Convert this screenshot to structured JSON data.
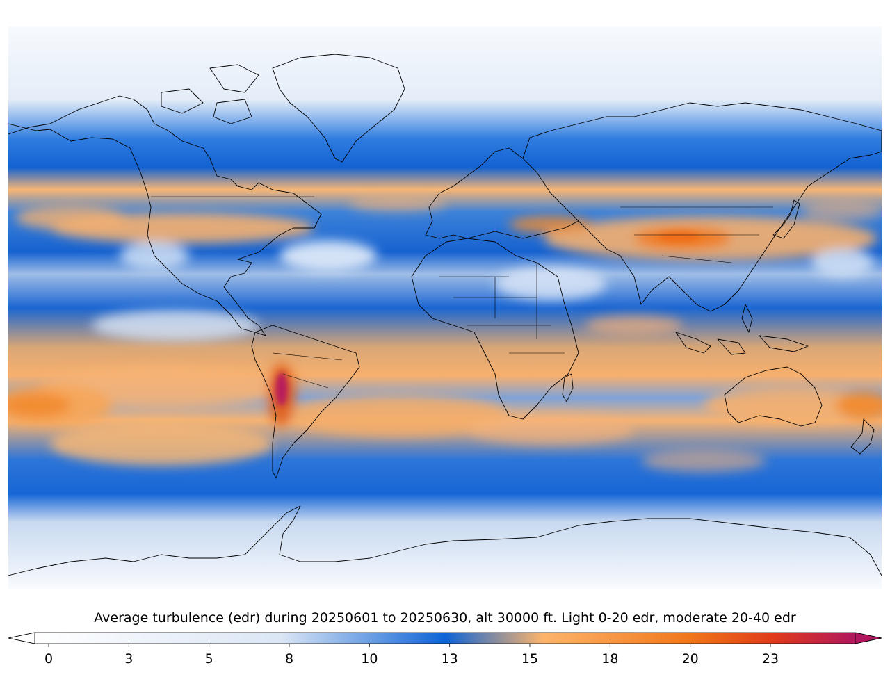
{
  "map": {
    "region": "world",
    "projection": "plate-carree",
    "variable": "average turbulence (edr)",
    "coastline_color": "#000000"
  },
  "colorbar": {
    "title": "Average turbulence (edr) during 20250601 to 20250630, alt 30000 ft. Light 0-20 edr, moderate 20-40 edr",
    "min": 0,
    "max": 25,
    "extend": "both",
    "ticks": [
      "0",
      "3",
      "5",
      "8",
      "10",
      "13",
      "15",
      "18",
      "20",
      "23"
    ],
    "colors": {
      "low": "#ffffff",
      "mid_low": "#dbe6f5",
      "mid": "#0d63d6",
      "mid_high": "#fdb46b",
      "high": "#f0761a",
      "very_high": "#e03a1a",
      "max": "#b0175e"
    }
  }
}
